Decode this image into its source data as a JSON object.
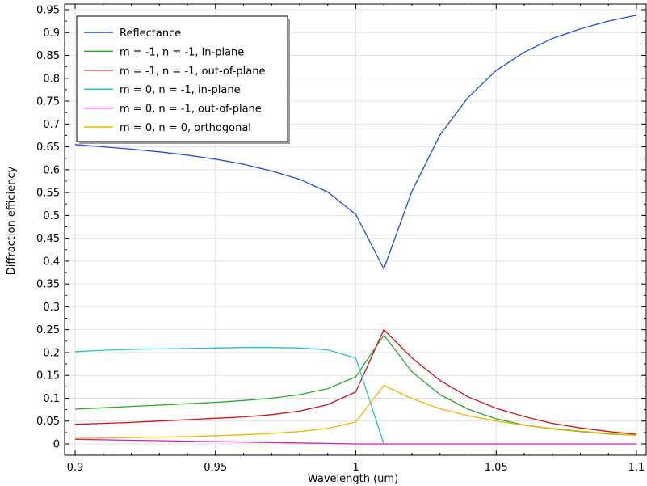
{
  "chart_data": {
    "type": "line",
    "xlabel": "Wavelength (um)",
    "ylabel": "Diffraction efficiency",
    "xlim": [
      0.9,
      1.1
    ],
    "ylim": [
      -0.015,
      0.955
    ],
    "x_ticks": [
      0.9,
      0.95,
      1.0,
      1.05,
      1.1
    ],
    "x_tick_labels": [
      "0.9",
      "0.95",
      "1",
      "1.05",
      "1.1"
    ],
    "y_ticks": [
      0,
      0.05,
      0.1,
      0.15,
      0.2,
      0.25,
      0.3,
      0.35,
      0.4,
      0.45,
      0.5,
      0.55,
      0.6,
      0.65,
      0.7,
      0.75,
      0.8,
      0.85,
      0.9,
      0.95
    ],
    "y_tick_labels": [
      "0",
      "0.05",
      "0.1",
      "0.15",
      "0.2",
      "0.25",
      "0.3",
      "0.35",
      "0.4",
      "0.45",
      "0.5",
      "0.55",
      "0.6",
      "0.65",
      "0.7",
      "0.75",
      "0.8",
      "0.85",
      "0.9",
      "0.95"
    ],
    "grid": true,
    "legend_position": "top-left",
    "x": [
      0.9,
      0.91,
      0.92,
      0.93,
      0.94,
      0.95,
      0.96,
      0.97,
      0.98,
      0.99,
      1.0,
      1.01,
      1.02,
      1.03,
      1.04,
      1.05,
      1.06,
      1.07,
      1.08,
      1.09,
      1.1
    ],
    "series": [
      {
        "name": "Reflectance",
        "color": "#1f4fd6",
        "values": [
          0.655,
          0.65,
          0.645,
          0.639,
          0.632,
          0.623,
          0.612,
          0.597,
          0.579,
          0.551,
          0.502,
          0.383,
          0.553,
          0.676,
          0.758,
          0.817,
          0.857,
          0.887,
          0.908,
          0.925,
          0.938
        ]
      },
      {
        "name": "m = -1, n = -1, in-plane",
        "color": "#2aa82a",
        "values": [
          0.076,
          0.079,
          0.082,
          0.085,
          0.088,
          0.091,
          0.095,
          0.1,
          0.108,
          0.121,
          0.147,
          0.238,
          0.158,
          0.108,
          0.076,
          0.055,
          0.041,
          0.033,
          0.027,
          0.022,
          0.019
        ]
      },
      {
        "name": "m = -1, n = -1, out-of-plane",
        "color": "#cc1414",
        "values": [
          0.043,
          0.045,
          0.047,
          0.05,
          0.053,
          0.056,
          0.059,
          0.064,
          0.072,
          0.086,
          0.114,
          0.25,
          0.188,
          0.139,
          0.103,
          0.078,
          0.06,
          0.045,
          0.035,
          0.027,
          0.021
        ]
      },
      {
        "name": "m = 0, n = -1, in-plane",
        "color": "#1ec8c8",
        "values": [
          0.202,
          0.205,
          0.207,
          0.208,
          0.209,
          0.21,
          0.211,
          0.211,
          0.21,
          0.206,
          0.188,
          0.0,
          null,
          null,
          null,
          null,
          null,
          null,
          null,
          null,
          null
        ]
      },
      {
        "name": "m = 0, n = -1, out-of-plane",
        "color": "#c81ec8",
        "values": [
          0.01,
          0.009,
          0.008,
          0.007,
          0.006,
          0.005,
          0.004,
          0.003,
          0.002,
          0.001,
          0.0,
          0.0,
          0.0,
          0.0,
          0.0,
          0.0,
          0.0,
          0.0,
          0.0,
          0.0,
          0.0
        ]
      },
      {
        "name": "m = 0, n = 0, orthogonal",
        "color": "#f2b600",
        "values": [
          0.012,
          0.013,
          0.014,
          0.015,
          0.016,
          0.018,
          0.02,
          0.023,
          0.027,
          0.034,
          0.048,
          0.128,
          0.099,
          0.077,
          0.062,
          0.05,
          0.041,
          0.034,
          0.028,
          0.023,
          0.019
        ]
      }
    ]
  }
}
